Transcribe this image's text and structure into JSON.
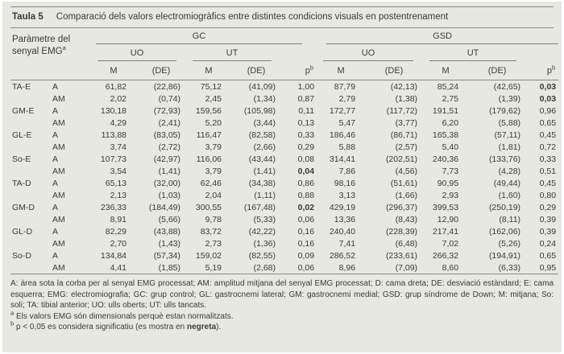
{
  "colors": {
    "panel_background": "#e8e8e3",
    "text": "#3a3a36",
    "rule": "#8a8a86"
  },
  "title": {
    "tag": "Taula 5",
    "text": "Comparació dels valors electromiogràfics entre distintes condicions visuals en postentrenament"
  },
  "header": {
    "param_label": "Paràmetre del senyal EMG",
    "param_sup": "a",
    "group_gc": "GC",
    "group_gsd": "GSD",
    "cond_uo": "UO",
    "cond_ut": "UT",
    "stat_m": "M",
    "stat_de": "(DE)",
    "p_label": "p",
    "p_sup": "b"
  },
  "rows": [
    {
      "param": "TA-E",
      "measure": "A",
      "values": [
        "61,82",
        "(22,86)",
        "75,12",
        "(41,09)",
        "1,00",
        "87,79",
        "(42,13)",
        "85,24",
        "(42,65)",
        "0,03"
      ],
      "bold": [
        9
      ]
    },
    {
      "param": "",
      "measure": "AM",
      "values": [
        "2,02",
        "(0,74)",
        "2,45",
        "(1,34)",
        "0,87",
        "2,79",
        "(1,38)",
        "2,75",
        "(1,39)",
        "0,03"
      ],
      "bold": [
        9
      ]
    },
    {
      "param": "GM-E",
      "measure": "A",
      "values": [
        "130,18",
        "(72,93)",
        "159,56",
        "(105,98)",
        "0,11",
        "172,77",
        "(117,72)",
        "191,51",
        "(179,62)",
        "0,96"
      ],
      "bold": []
    },
    {
      "param": "",
      "measure": "AM",
      "values": [
        "4,29",
        "(2,41)",
        "5,20",
        "(3,44)",
        "0,13",
        "5,47",
        "(3,77)",
        "6,20",
        "(5,88)",
        "0,65"
      ],
      "bold": []
    },
    {
      "param": "GL-E",
      "measure": "A",
      "values": [
        "113,88",
        "(83,05)",
        "116,47",
        "(82,58)",
        "0,33",
        "186,46",
        "(86,71)",
        "165,38",
        "(57,11)",
        "0,45"
      ],
      "bold": []
    },
    {
      "param": "",
      "measure": "AM",
      "values": [
        "3,74",
        "(2,72)",
        "3,79",
        "(2,66)",
        "0,29",
        "5,88",
        "(2,57)",
        "5,40",
        "(1,81)",
        "0,72"
      ],
      "bold": []
    },
    {
      "param": "So-E",
      "measure": "A",
      "values": [
        "107,73",
        "(42,97)",
        "116,06",
        "(43,44)",
        "0,08",
        "314,41",
        "(202,51)",
        "240,36",
        "(133,76)",
        "0,33"
      ],
      "bold": []
    },
    {
      "param": "",
      "measure": "AM",
      "values": [
        "3,54",
        "(1,41)",
        "3,79",
        "(1,41)",
        "0,04",
        "7,86",
        "(4,56)",
        "7,73",
        "(4,28)",
        "0,51"
      ],
      "bold": [
        4
      ]
    },
    {
      "param": "TA-D",
      "measure": "A",
      "values": [
        "65,13",
        "(32,00)",
        "62,46",
        "(34,38)",
        "0,86",
        "98,16",
        "(51,61)",
        "90,95",
        "(49,44)",
        "0,45"
      ],
      "bold": []
    },
    {
      "param": "",
      "measure": "AM",
      "values": [
        "2,13",
        "(1,03)",
        "2,04",
        "(1,11)",
        "0,88",
        "3,13",
        "(1,66)",
        "2,93",
        "(1,60)",
        "0,80"
      ],
      "bold": []
    },
    {
      "param": "GM-D",
      "measure": "A",
      "values": [
        "236,33",
        "(184,49)",
        "300,55",
        "(167,48)",
        "0,02",
        "429,19",
        "(296,37)",
        "399,53",
        "(250,19)",
        "0,29"
      ],
      "bold": [
        4
      ]
    },
    {
      "param": "",
      "measure": "AM",
      "values": [
        "8,91",
        "(5,66)",
        "9,78",
        "(5,33)",
        "0,06",
        "13,36",
        "(8,43)",
        "12,90",
        "(8,11)",
        "0,39"
      ],
      "bold": []
    },
    {
      "param": "GL-D",
      "measure": "A",
      "values": [
        "82,29",
        "(43,88)",
        "83,72",
        "(42,22)",
        "0,16",
        "240,40",
        "(228,39)",
        "217,41",
        "(162,06)",
        "0,39"
      ],
      "bold": []
    },
    {
      "param": "",
      "measure": "AM",
      "values": [
        "2,70",
        "(1,43)",
        "2,73",
        "(1,36)",
        "0,16",
        "7,41",
        "(6,48)",
        "7,02",
        "(5,26)",
        "0,24"
      ],
      "bold": []
    },
    {
      "param": "So-D",
      "measure": "A",
      "values": [
        "134,84",
        "(57,34)",
        "159,02",
        "(82,55)",
        "0,09",
        "286,52",
        "(233,61)",
        "266,32",
        "(194,91)",
        "0,65"
      ],
      "bold": []
    },
    {
      "param": "",
      "measure": "AM",
      "values": [
        "4,41",
        "(1,85)",
        "5,19",
        "(2,68)",
        "0,06",
        "8,96",
        "(7,09)",
        "8,60",
        "(6,33)",
        "0,95"
      ],
      "bold": []
    }
  ],
  "footnotes": {
    "abbreviations": "A: àrea sota la corba per al senyal EMG processat; AM: amplitud mitjana del senyal EMG processat; D: cama dreta; DE: desviació estàndard; E: cama esquerra; EMG: electromiografia; GC: grup control; GL: gastrocnemi lateral; GM: gastrocnemi medial; GSD: grup síndrome de Down; M: mitjana; So: soli; TA: tibial anterior; UO: ulls oberts; UT: ulls tancats.",
    "note_a_marker": "a",
    "note_a_text": " Els valors EMG són dimensionals perquè estan normalitzats.",
    "note_b_marker": "b",
    "note_b_prefix": " p < 0,05 es considera significatiu (es mostra en ",
    "note_b_bold": "negreta",
    "note_b_suffix": ")."
  }
}
